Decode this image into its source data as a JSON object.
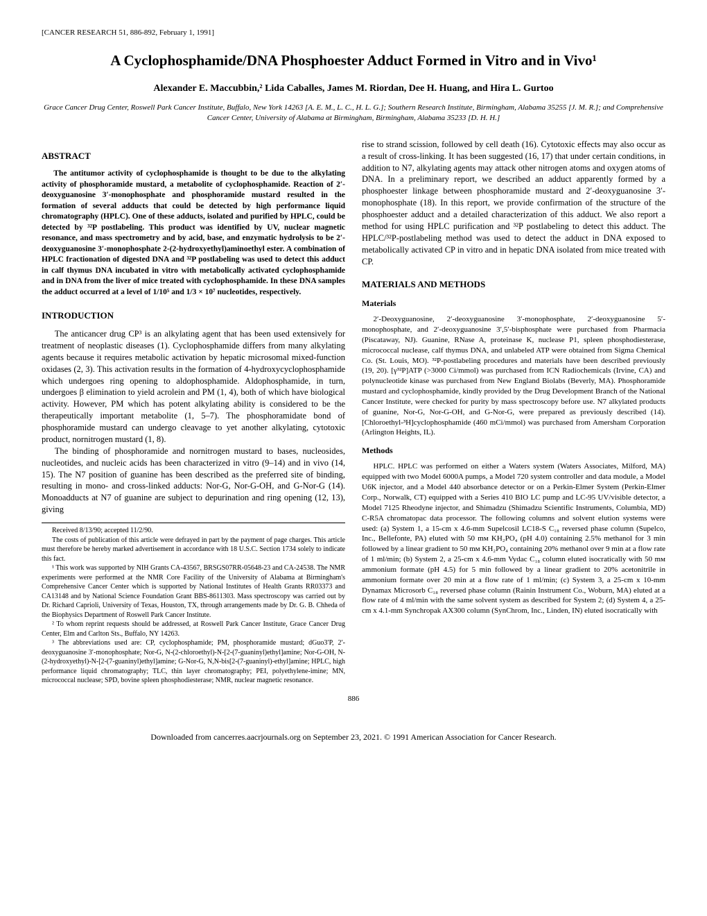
{
  "header_note": "[CANCER RESEARCH 51, 886-892, February 1, 1991]",
  "title": "A Cyclophosphamide/DNA Phosphoester Adduct Formed in Vitro and in Vivo¹",
  "authors": "Alexander E. Maccubbin,² Lida Caballes, James M. Riordan, Dee H. Huang, and Hira L. Gurtoo",
  "affiliation": "Grace Cancer Drug Center, Roswell Park Cancer Institute, Buffalo, New York 14263 [A. E. M., L. C., H. L. G.]; Southern Research Institute, Birmingham, Alabama 35255 [J. M. R.]; and Comprehensive Cancer Center, University of Alabama at Birmingham, Birmingham, Alabama 35233 [D. H. H.]",
  "abstract_heading": "ABSTRACT",
  "abstract_body": "The antitumor activity of cyclophosphamide is thought to be due to the alkylating activity of phosphoramide mustard, a metabolite of cyclophosphamide. Reaction of 2′-deoxyguanosine 3′-monophosphate and phosphoramide mustard resulted in the formation of several adducts that could be detected by high performance liquid chromatography (HPLC). One of these adducts, isolated and purified by HPLC, could be detected by ³²P postlabeling. This product was identified by UV, nuclear magnetic resonance, and mass spectrometry and by acid, base, and enzymatic hydrolysis to be 2′-deoxyguanosine 3′-monophosphate 2-(2-hydroxyethyl)aminoethyl ester. A combination of HPLC fractionation of digested DNA and ³²P postlabeling was used to detect this adduct in calf thymus DNA incubated in vitro with metabolically activated cyclophosphamide and in DNA from the liver of mice treated with cyclophosphamide. In these DNA samples the adduct occurred at a level of 1/10⁵ and 1/3 × 10⁷ nucleotides, respectively.",
  "intro_heading": "INTRODUCTION",
  "intro_p1": "The anticancer drug CP³ is an alkylating agent that has been used extensively for treatment of neoplastic diseases (1). Cyclophosphamide differs from many alkylating agents because it requires metabolic activation by hepatic microsomal mixed-function oxidases (2, 3). This activation results in the formation of 4-hydroxycyclophosphamide which undergoes ring opening to aldophosphamide. Aldophosphamide, in turn, undergoes β elimination to yield acrolein and PM (1, 4), both of which have biological activity. However, PM which has potent alkylating ability is considered to be the therapeutically important metabolite (1, 5–7). The phosphoramidate bond of phosphoramide mustard can undergo cleavage to yet another alkylating, cytotoxic product, nornitrogen mustard (1, 8).",
  "intro_p2": "The binding of phosphoramide and nornitrogen mustard to bases, nucleosides, nucleotides, and nucleic acids has been characterized in vitro (9–14) and in vivo (14, 15). The N7 position of guanine has been described as the preferred site of binding, resulting in mono- and cross-linked adducts: Nor-G, Nor-G-OH, and G-Nor-G (14). Monoadducts at N7 of guanine are subject to depurination and ring opening (12, 13), giving",
  "col2_p1": "rise to strand scission, followed by cell death (16). Cytotoxic effects may also occur as a result of cross-linking. It has been suggested (16, 17) that under certain conditions, in addition to N7, alkylating agents may attack other nitrogen atoms and oxygen atoms of DNA. In a preliminary report, we described an adduct apparently formed by a phosphoester linkage between phosphoramide mustard and 2′-deoxyguanosine 3′-monophosphate (18). In this report, we provide confirmation of the structure of the phosphoester adduct and a detailed characterization of this adduct. We also report a method for using HPLC purification and ³²P postlabeling to detect this adduct. The HPLC/³²P-postlabeling method was used to detect the adduct in DNA exposed to metabolically activated CP in vitro and in hepatic DNA isolated from mice treated with CP.",
  "mm_heading": "MATERIALS AND METHODS",
  "materials_heading": "Materials",
  "materials_body": "2′-Deoxyguanosine, 2′-deoxyguanosine 3′-monophosphate, 2′-deoxyguanosine 5′-monophosphate, and 2′-deoxyguanosine 3′,5′-bisphosphate were purchased from Pharmacia (Piscataway, NJ). Guanine, RNase A, proteinase K, nuclease P1, spleen phosphodiesterase, micrococcal nuclease, calf thymus DNA, and unlabeled ATP were obtained from Sigma Chemical Co. (St. Louis, MO). ³²P-postlabeling procedures and materials have been described previously (19, 20). [γ³²P]ATP (>3000 Ci/mmol) was purchased from ICN Radiochemicals (Irvine, CA) and polynucleotide kinase was purchased from New England Biolabs (Beverly, MA). Phosphoramide mustard and cyclophosphamide, kindly provided by the Drug Development Branch of the National Cancer Institute, were checked for purity by mass spectroscopy before use. N7 alkylated products of guanine, Nor-G, Nor-G-OH, and G-Nor-G, were prepared as previously described (14). [Chloroethyl-³H]cyclophosphamide (460 mCi/mmol) was purchased from Amersham Corporation (Arlington Heights, IL).",
  "methods_heading": "Methods",
  "methods_body": "HPLC. HPLC was performed on either a Waters system (Waters Associates, Milford, MA) equipped with two Model 6000A pumps, a Model 720 system controller and data module, a Model U6K injector, and a Model 440 absorbance detector or on a Perkin-Elmer System (Perkin-Elmer Corp., Norwalk, CT) equipped with a Series 410 BIO LC pump and LC-95 UV/visible detector, a Model 7125 Rheodyne injector, and Shimadzu (Shimadzu Scientific Instruments, Columbia, MD) C-R5A chromatopac data processor. The following columns and solvent elution systems were used: (a) System 1, a 15-cm x 4.6-mm Supelcosil LC18-S C₁₈ reversed phase column (Supelco, Inc., Bellefonte, PA) eluted with 50 mᴍ KH₂PO₄ (pH 4.0) containing 2.5% methanol for 3 min followed by a linear gradient to 50 mᴍ KH₂PO₄ containing 20% methanol over 9 min at a flow rate of 1 ml/min; (b) System 2, a 25-cm x 4.6-mm Vydac C₁₈ column eluted isocratically with 50 mᴍ ammonium formate (pH 4.5) for 5 min followed by a linear gradient to 20% acetonitrile in ammonium formate over 20 min at a flow rate of 1 ml/min; (c) System 3, a 25-cm x 10-mm Dynamax Microsorb C₁₈ reversed phase column (Rainin Instrument Co., Woburn, MA) eluted at a flow rate of 4 ml/min with the same solvent system as described for System 2; (d) System 4, a 25-cm x 4.1-mm Synchropak AX300 column (SynChrom, Inc., Linden, IN) eluted isocratically with",
  "footnote_received": "Received 8/13/90; accepted 11/2/90.",
  "footnote_costs": "The costs of publication of this article were defrayed in part by the payment of page charges. This article must therefore be hereby marked advertisement in accordance with 18 U.S.C. Section 1734 solely to indicate this fact.",
  "footnote_1": "¹ This work was supported by NIH Grants CA-43567, BRSGS07RR-05648-23 and CA-24538. The NMR experiments were performed at the NMR Core Facility of the University of Alabama at Birmingham's Comprehensive Cancer Center which is supported by National Institutes of Health Grants RR03373 and CA13148 and by National Science Foundation Grant BBS-8611303. Mass spectroscopy was carried out by Dr. Richard Caprioli, University of Texas, Houston, TX, through arrangements made by Dr. G. B. Chheda of the Biophysics Department of Roswell Park Cancer Institute.",
  "footnote_2": "² To whom reprint requests should be addressed, at Roswell Park Cancer Institute, Grace Cancer Drug Center, Elm and Carlton Sts., Buffalo, NY 14263.",
  "footnote_3": "³ The abbreviations used are: CP, cyclophosphamide; PM, phosphoramide mustard; dGuo3′P, 2′-deoxyguanosine 3′-monophosphate; Nor-G, N-(2-chloroethyl)-N-[2-(7-guaninyl)ethyl]amine; Nor-G-OH, N-(2-hydroxyethyl)-N-[2-(7-guaninyl)ethyl]amine; G-Nor-G, N,N-bis[2-(7-guaninyl)-ethyl]amine; HPLC, high performance liquid chromatography; TLC, thin layer chromatography; PEI, polyethylene-imine; MN, micrococcal nuclease; SPD, bovine spleen phosphodiesterase; NMR, nuclear magnetic resonance.",
  "page_number": "886",
  "footer": "Downloaded from cancerres.aacrjournals.org on September 23, 2021. © 1991 American Association for Cancer Research."
}
